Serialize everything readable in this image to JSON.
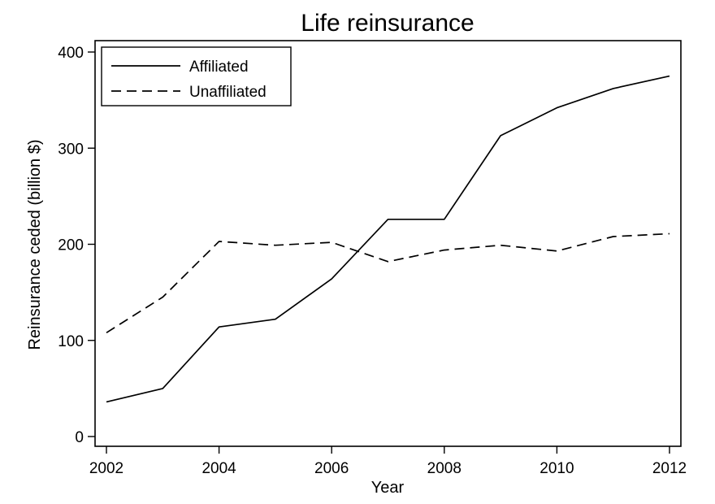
{
  "chart_data": {
    "type": "line",
    "title": "Life reinsurance",
    "xlabel": "Year",
    "ylabel": "Reinsurance ceded (billion $)",
    "xlim": [
      2002,
      2012
    ],
    "ylim": [
      0,
      400
    ],
    "x_ticks": [
      2002,
      2004,
      2006,
      2008,
      2010,
      2012
    ],
    "y_ticks": [
      0,
      100,
      200,
      300,
      400
    ],
    "grid": false,
    "legend_position": "top-left",
    "x": [
      2002,
      2003,
      2004,
      2005,
      2006,
      2007,
      2008,
      2009,
      2010,
      2011,
      2012
    ],
    "series": [
      {
        "name": "Affiliated",
        "style": "solid",
        "color": "#000000",
        "values": [
          36,
          50,
          114,
          122,
          164,
          226,
          226,
          313,
          342,
          362,
          375
        ]
      },
      {
        "name": "Unaffiliated",
        "style": "dashed",
        "color": "#000000",
        "values": [
          108,
          145,
          203,
          199,
          202,
          182,
          194,
          199,
          193,
          208,
          211
        ]
      }
    ]
  }
}
